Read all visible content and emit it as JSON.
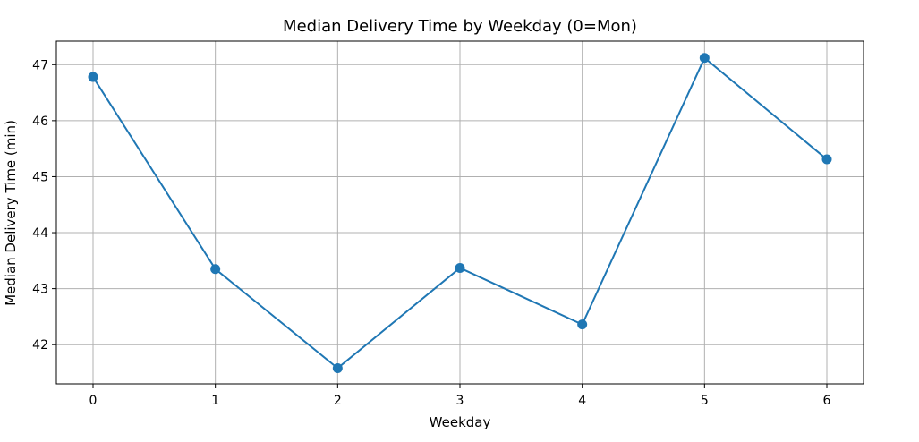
{
  "chart_data": {
    "type": "line",
    "title": "Median Delivery Time by Weekday (0=Mon)",
    "xlabel": "Weekday",
    "ylabel": "Median Delivery Time (min)",
    "x": [
      0,
      1,
      2,
      3,
      4,
      5,
      6
    ],
    "x_ticks": [
      "0",
      "1",
      "2",
      "3",
      "4",
      "5",
      "6"
    ],
    "y_ticks": [
      "42",
      "43",
      "44",
      "45",
      "46",
      "47"
    ],
    "xlim": [
      -0.3,
      6.3
    ],
    "ylim": [
      41.3,
      47.42
    ],
    "grid": true,
    "series": [
      {
        "values": [
          46.78,
          43.35,
          41.58,
          43.37,
          42.36,
          47.12,
          45.31
        ],
        "color": "#1f77b4",
        "marker": "circle"
      }
    ]
  }
}
